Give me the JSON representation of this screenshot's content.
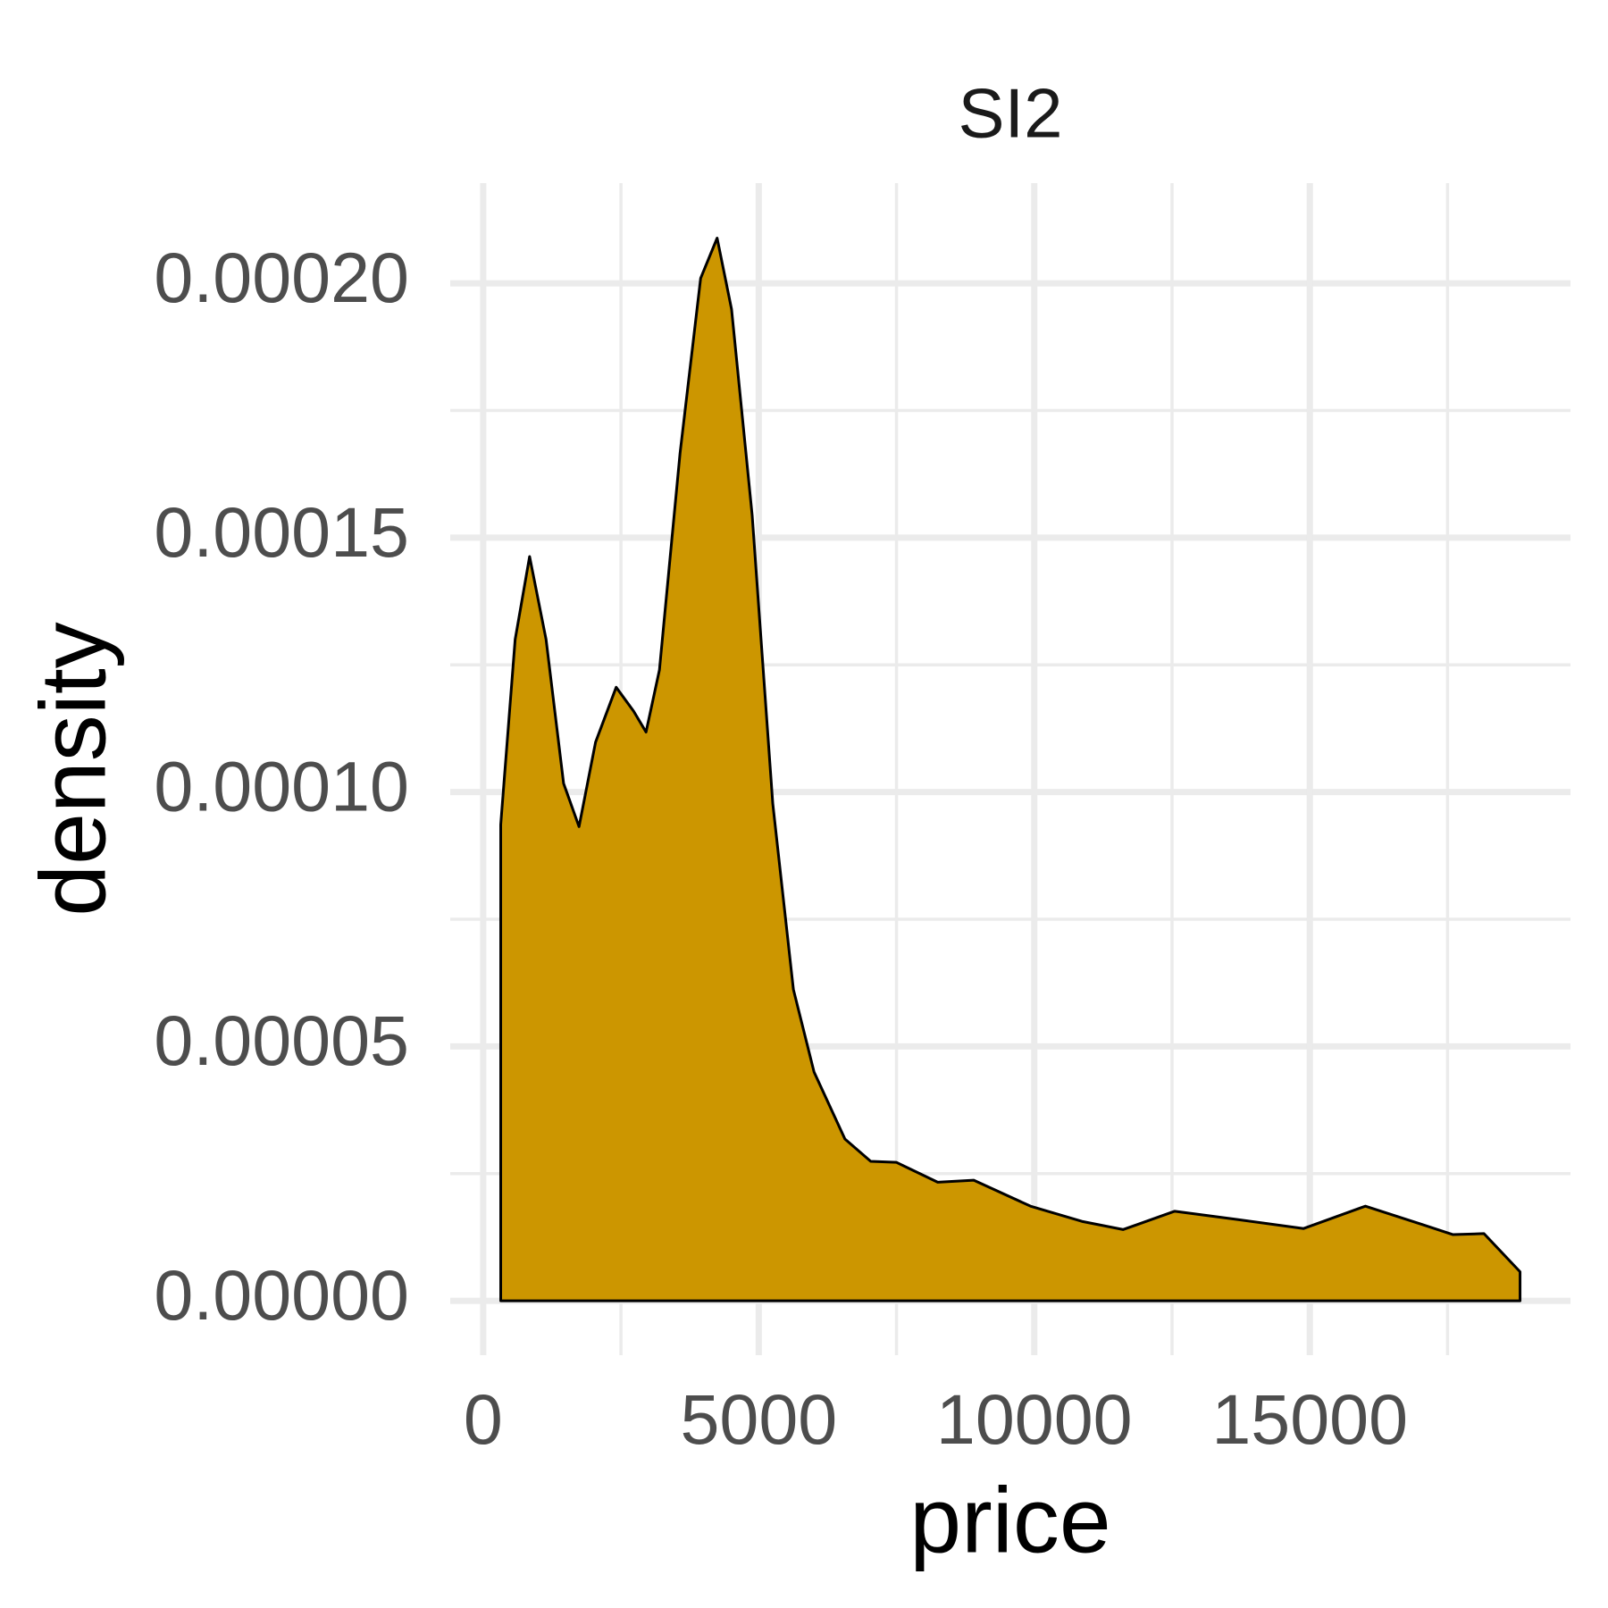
{
  "chart_data": {
    "type": "area",
    "title": "SI2",
    "x_label": "price",
    "y_label": "density",
    "x": [
      318,
      580,
      842,
      1141,
      1459,
      1739,
      2039,
      2413,
      2730,
      2955,
      3198,
      3572,
      3946,
      4245,
      4507,
      4881,
      5255,
      5629,
      6003,
      6564,
      7032,
      7500,
      8248,
      8902,
      9931,
      10866,
      11614,
      12549,
      13671,
      14887,
      16009,
      17038,
      17599,
      18160,
      18815
    ],
    "values": [
      9.36e-05,
      0.00013,
      0.0001463,
      0.00013,
      0.0001017,
      9.32e-05,
      0.0001098,
      0.0001206,
      0.0001159,
      0.0001118,
      0.000124,
      0.0001666,
      0.000201,
      0.0002089,
      0.0001949,
      0.0001544,
      9.77e-05,
      6.12e-05,
      4.5e-05,
      3.18e-05,
      2.74e-05,
      2.72e-05,
      2.33e-05,
      2.37e-05,
      1.86e-05,
      1.56e-05,
      1.4e-05,
      1.76e-05,
      1.6e-05,
      1.42e-05,
      1.86e-05,
      1.5e-05,
      1.3e-05,
      1.32e-05,
      5.7e-06
    ],
    "color": "#cc9600",
    "line_color": "#000000",
    "xlim": [
      -598,
      19730
    ],
    "xticks": [
      0,
      5000,
      10000,
      15000
    ],
    "ylim": [
      -1.07e-05,
      0.0002197
    ],
    "yticks": [
      {
        "value": 0,
        "label": "0.00000"
      },
      {
        "value": 5e-05,
        "label": "0.00005"
      },
      {
        "value": 0.0001,
        "label": "0.00010"
      },
      {
        "value": 0.00015,
        "label": "0.00015"
      },
      {
        "value": 0.0002,
        "label": "0.00020"
      }
    ],
    "grid": true
  }
}
